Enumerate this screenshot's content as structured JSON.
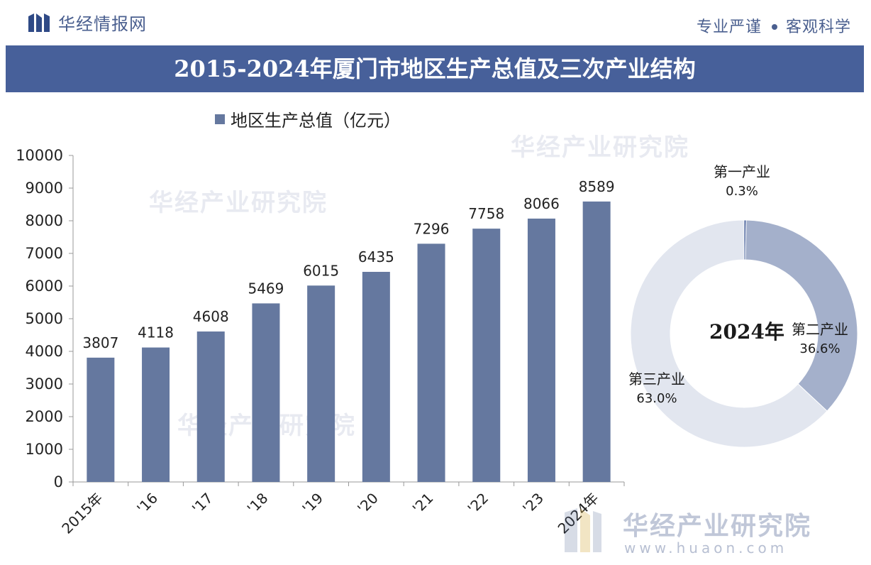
{
  "header": {
    "brand": "华经情报网",
    "slogan_left": "专业严谨",
    "slogan_right": "客观科学"
  },
  "title": "2015-2024年厦门市地区生产总值及三次产业结构",
  "watermarks": {
    "institute": "华经产业研究院",
    "url": "www.huaon.com"
  },
  "colors": {
    "bar": "#65789f",
    "title_bg": "#47609a",
    "donut_secondary": "#a4b0cb",
    "donut_tertiary": "#e2e6ef",
    "donut_primary": "#47609a"
  },
  "chart_data": [
    {
      "type": "bar",
      "legend": "地区生产总值（亿元）",
      "categories": [
        "2015年",
        "'16",
        "'17",
        "'18",
        "'19",
        "'20",
        "'21",
        "'22",
        "'23",
        "2024年"
      ],
      "values": [
        3807,
        4118,
        4608,
        5469,
        6015,
        6435,
        7296,
        7758,
        8066,
        8589
      ],
      "ylim": [
        0,
        10000
      ],
      "yticks": [
        0,
        1000,
        2000,
        3000,
        4000,
        5000,
        6000,
        7000,
        8000,
        9000,
        10000
      ],
      "xlabel": "",
      "ylabel": ""
    },
    {
      "type": "pie",
      "subtype": "donut",
      "center_label": "2024年",
      "slices": [
        {
          "name": "第一产业",
          "value": 0.3,
          "label": "0.3%"
        },
        {
          "name": "第二产业",
          "value": 36.6,
          "label": "36.6%"
        },
        {
          "name": "第三产业",
          "value": 63.0,
          "label": "63.0%"
        }
      ]
    }
  ]
}
